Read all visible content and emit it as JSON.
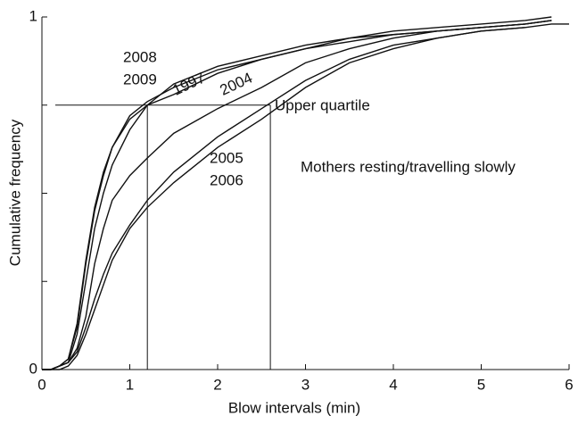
{
  "chart_data": {
    "type": "line",
    "x": [
      0,
      0.1,
      0.2,
      0.3,
      0.4,
      0.5,
      0.6,
      0.7,
      0.8,
      1.0,
      1.2,
      1.5,
      2.0,
      2.5,
      3.0,
      3.5,
      4.0,
      4.5,
      5.0,
      5.5,
      5.8,
      6.0
    ],
    "series": [
      {
        "name": "2008",
        "color": "#111",
        "values": [
          0,
          0,
          0.01,
          0.03,
          0.12,
          0.3,
          0.45,
          0.55,
          0.63,
          0.72,
          0.76,
          0.8,
          0.85,
          0.88,
          0.91,
          0.94,
          0.95,
          0.96,
          0.97,
          0.98,
          0.99,
          null
        ]
      },
      {
        "name": "2009",
        "color": "#111",
        "values": [
          0,
          0,
          0.01,
          0.03,
          0.13,
          0.31,
          0.46,
          0.56,
          0.63,
          0.71,
          0.75,
          0.81,
          0.86,
          0.89,
          0.92,
          0.94,
          0.96,
          0.97,
          0.98,
          0.99,
          1.0,
          null
        ]
      },
      {
        "name": "1997",
        "color": "#111",
        "values": [
          0,
          0,
          0.01,
          0.02,
          0.1,
          0.25,
          0.4,
          0.5,
          0.58,
          0.68,
          0.75,
          0.78,
          0.84,
          0.88,
          0.91,
          0.93,
          0.95,
          0.96,
          0.97,
          0.98,
          0.99,
          null
        ]
      },
      {
        "name": "2004",
        "color": "#111",
        "values": [
          0,
          0,
          0.01,
          0.02,
          0.06,
          0.15,
          0.3,
          0.4,
          0.48,
          0.55,
          0.6,
          0.67,
          0.74,
          0.8,
          0.87,
          0.91,
          0.94,
          0.96,
          0.97,
          0.98,
          0.99,
          null
        ]
      },
      {
        "name": "2005",
        "color": "#111",
        "values": [
          0,
          0,
          0.01,
          0.02,
          0.05,
          0.12,
          0.2,
          0.27,
          0.33,
          0.41,
          0.48,
          0.56,
          0.66,
          0.74,
          0.82,
          0.88,
          0.92,
          0.94,
          0.96,
          0.97,
          0.98,
          0.98
        ]
      },
      {
        "name": "2006",
        "color": "#111",
        "values": [
          0,
          0,
          0,
          0.01,
          0.04,
          0.1,
          0.17,
          0.24,
          0.31,
          0.4,
          0.46,
          0.53,
          0.63,
          0.71,
          0.8,
          0.87,
          0.91,
          0.94,
          0.96,
          0.97,
          null,
          null
        ]
      }
    ],
    "annotations": [
      "2008",
      "2009",
      "1997",
      "2004",
      "Upper quartile",
      "2005",
      "2006",
      "Mothers resting/travelling slowly"
    ],
    "quartile": 0.75,
    "quartile_x": [
      1.2,
      2.6
    ],
    "xlabel": "Blow intervals (min)",
    "ylabel": "Cumulative frequency",
    "xlim": [
      0,
      6
    ],
    "ylim": [
      0,
      1
    ],
    "xticks": [
      0,
      1,
      2,
      3,
      4,
      5,
      6
    ],
    "yticks": [
      0,
      1
    ],
    "yminor_ticks": [
      0.25,
      0.5,
      0.75
    ]
  }
}
